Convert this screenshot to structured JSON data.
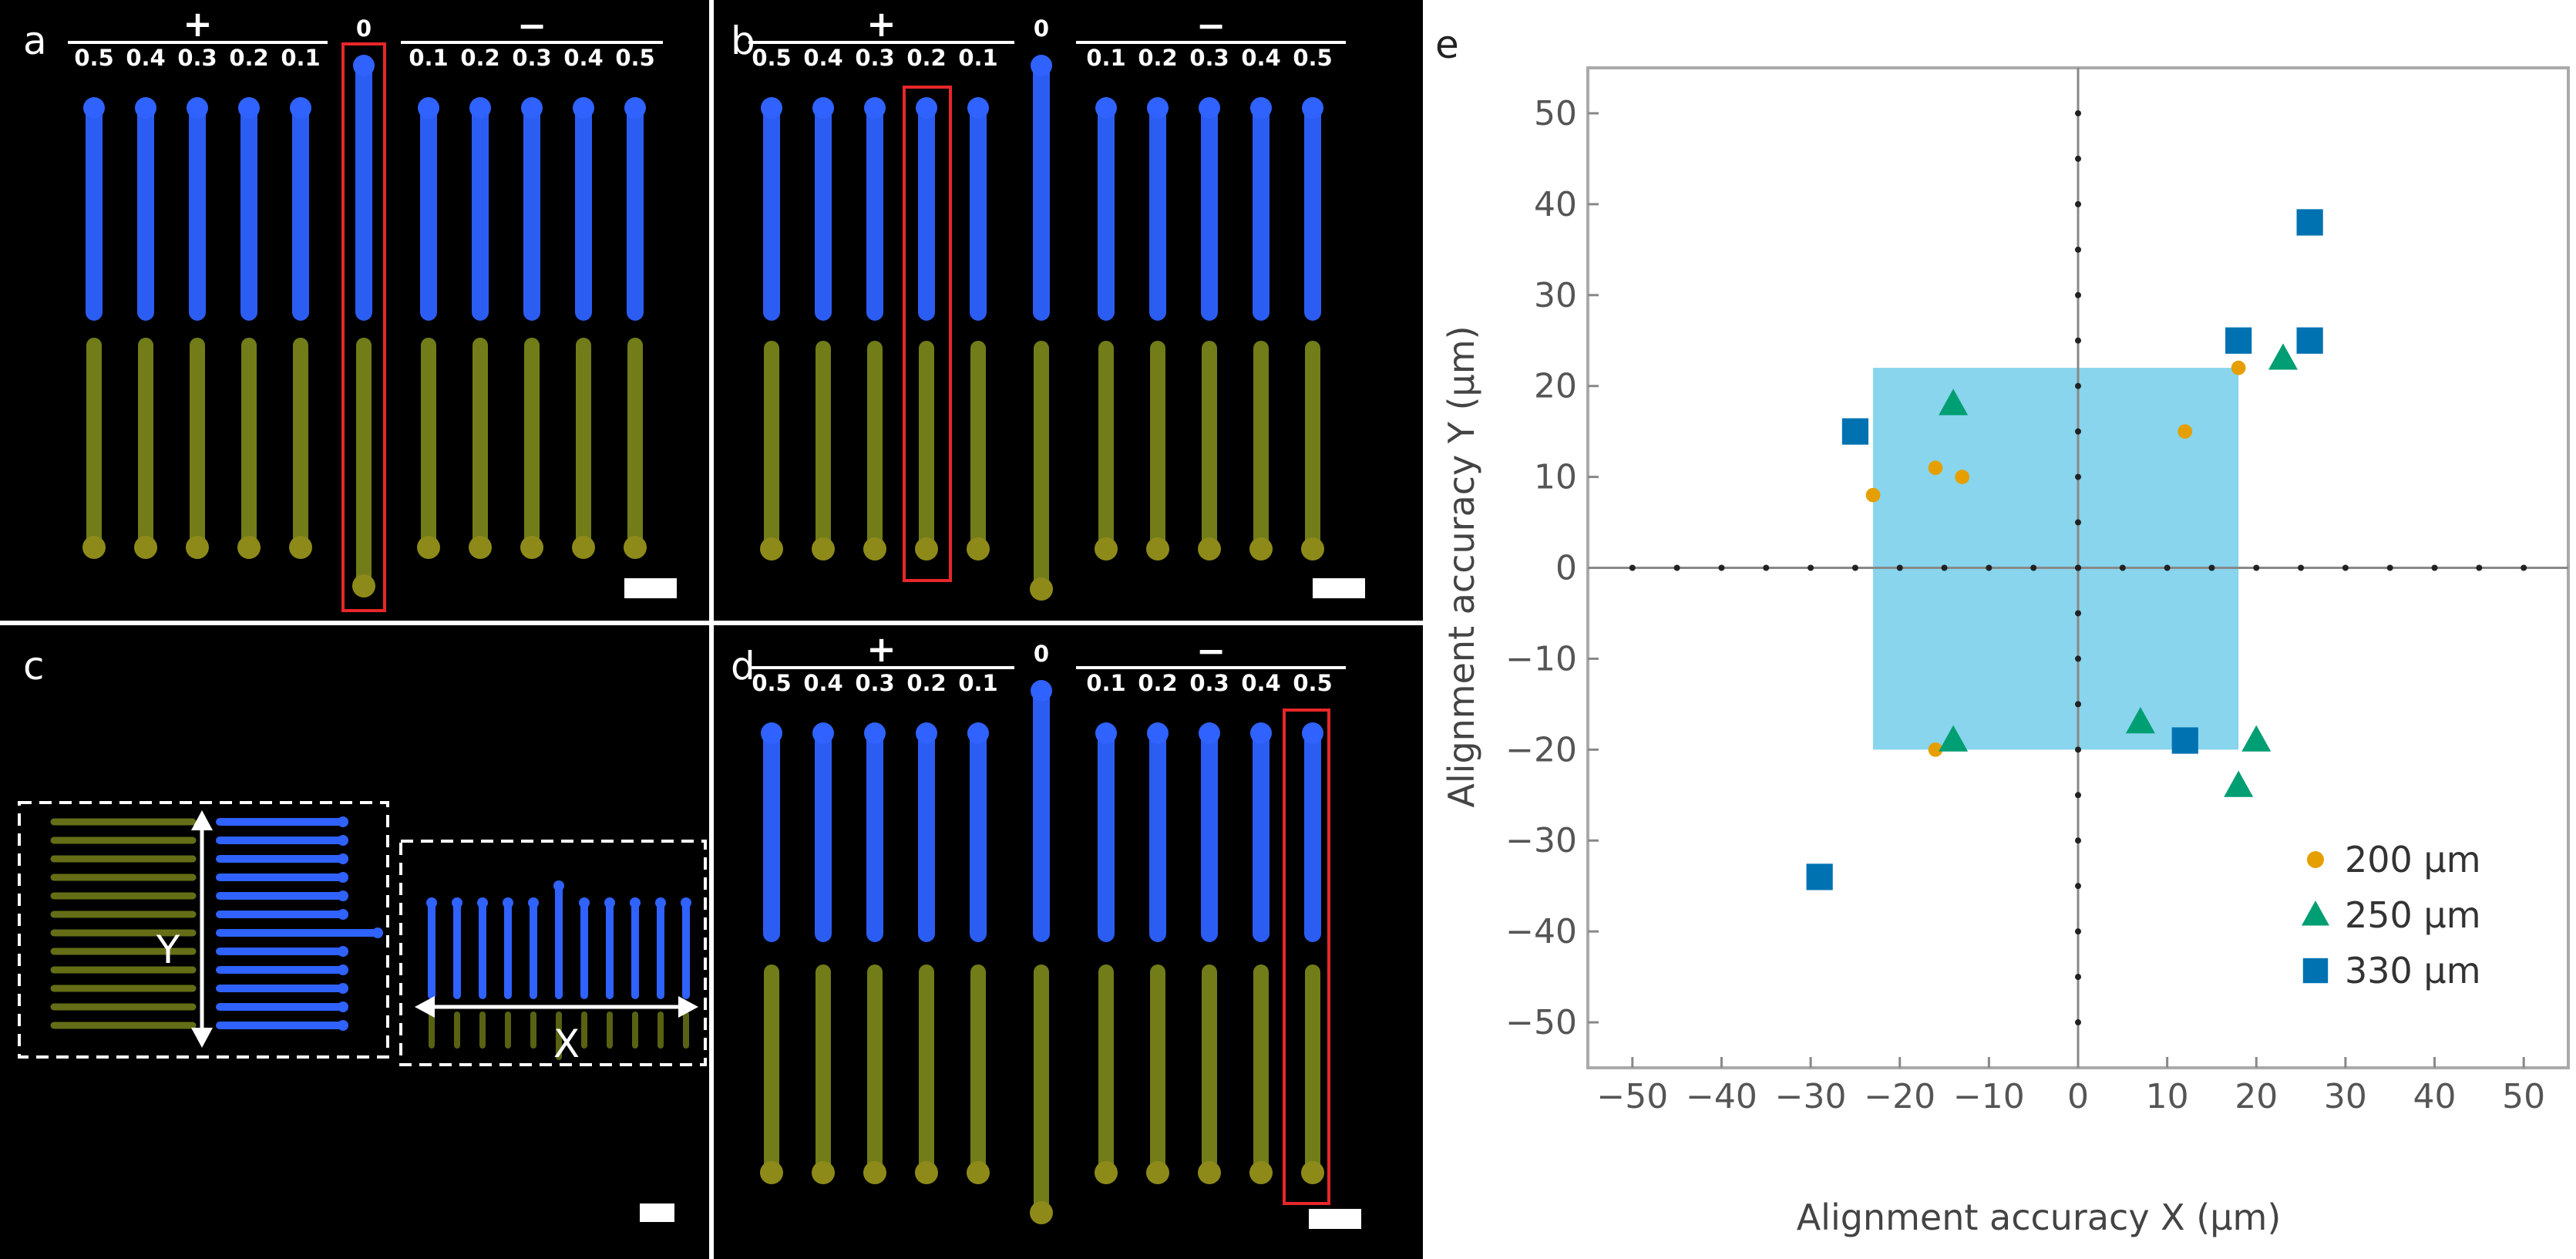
{
  "panels": {
    "a": {
      "label": "a",
      "plus_sign": "+",
      "minus_sign": "−",
      "zero_label": "0",
      "plus_labels": [
        "0.5",
        "0.4",
        "0.3",
        "0.2",
        "0.1"
      ],
      "minus_labels": [
        "0.1",
        "0.2",
        "0.3",
        "0.4",
        "0.5"
      ]
    },
    "b": {
      "label": "b",
      "plus_sign": "+",
      "minus_sign": "−",
      "zero_label": "0",
      "plus_labels": [
        "0.5",
        "0.4",
        "0.3",
        "0.2",
        "0.1"
      ],
      "minus_labels": [
        "0.1",
        "0.2",
        "0.3",
        "0.4",
        "0.5"
      ]
    },
    "c": {
      "label": "c",
      "y_label": "Y",
      "x_label": "X"
    },
    "d": {
      "label": "d",
      "plus_sign": "+",
      "minus_sign": "−",
      "zero_label": "0",
      "plus_labels": [
        "0.5",
        "0.4",
        "0.3",
        "0.2",
        "0.1"
      ],
      "minus_labels": [
        "0.1",
        "0.2",
        "0.3",
        "0.4",
        "0.5"
      ]
    },
    "e": {
      "label": "e"
    }
  },
  "colors": {
    "blue_fiber": "#2f62ff",
    "yellow_fiber": "#7f8a1c",
    "highlight": "#e8262a",
    "series_200": "#e69f00",
    "series_250": "#009e73",
    "series_330": "#0072b2",
    "region_fill": "#56c3e6"
  },
  "chart_data": {
    "type": "scatter",
    "title": "",
    "xlabel": "Alignment accuracy X (µm)",
    "ylabel": "Alignment accuracy Y (µm)",
    "xlim": [
      -55,
      55
    ],
    "ylim": [
      -55,
      55
    ],
    "xticks": [
      -50,
      -40,
      -30,
      -20,
      -10,
      0,
      10,
      20,
      30,
      40,
      50
    ],
    "yticks": [
      -50,
      -40,
      -30,
      -20,
      -10,
      0,
      10,
      20,
      30,
      40,
      50
    ],
    "tick_labels_x": [
      "−50",
      "−40",
      "−30",
      "−20",
      "−10",
      "0",
      "10",
      "20",
      "30",
      "40",
      "50"
    ],
    "tick_labels_y": [
      "−50",
      "−40",
      "−30",
      "−20",
      "−10",
      "0",
      "10",
      "20",
      "30",
      "40",
      "50"
    ],
    "region": {
      "x": [
        -23,
        18
      ],
      "y": [
        -20,
        22
      ]
    },
    "legend_position": "bottom-right",
    "series": [
      {
        "name": "200 µm",
        "marker": "circle",
        "points": [
          [
            -23,
            8
          ],
          [
            -16,
            11
          ],
          [
            -13,
            10
          ],
          [
            -16,
            -20
          ],
          [
            12,
            15
          ],
          [
            18,
            22
          ]
        ]
      },
      {
        "name": "250 µm",
        "marker": "triangle",
        "points": [
          [
            -14,
            18
          ],
          [
            -14,
            -19
          ],
          [
            7,
            -17
          ],
          [
            18,
            -24
          ],
          [
            20,
            -19
          ],
          [
            23,
            23
          ]
        ]
      },
      {
        "name": "330 µm",
        "marker": "square",
        "points": [
          [
            -25,
            15
          ],
          [
            -29,
            -34
          ],
          [
            12,
            -19
          ],
          [
            18,
            25
          ],
          [
            26,
            38
          ],
          [
            26,
            25
          ]
        ]
      }
    ]
  }
}
